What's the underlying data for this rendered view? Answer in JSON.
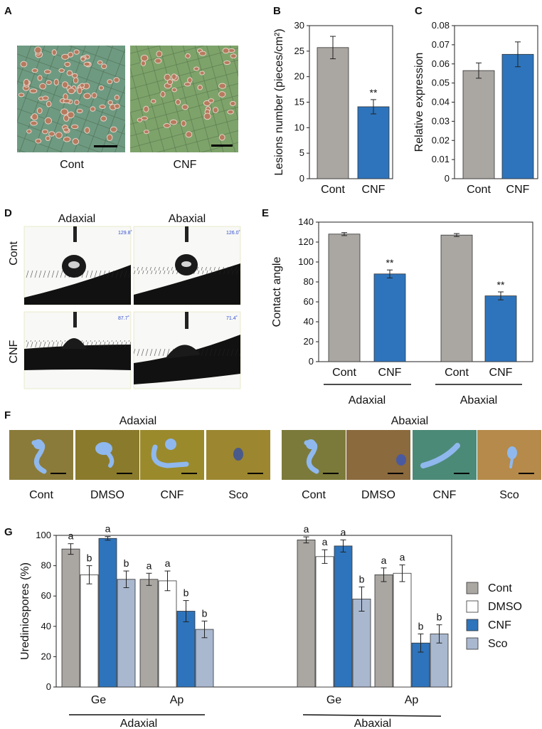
{
  "panels": {
    "A": {
      "label": "A",
      "captions": [
        "Cont",
        "CNF"
      ]
    },
    "B": {
      "label": "B"
    },
    "C": {
      "label": "C"
    },
    "D": {
      "label": "D",
      "columns": [
        "Adaxial",
        "Abaxial"
      ],
      "rows": [
        "Cont",
        "CNF"
      ],
      "angles": [
        "129.8˚",
        "126.0˚",
        "87.7˚",
        "71.4˚"
      ]
    },
    "E": {
      "label": "E"
    },
    "F": {
      "label": "F",
      "groups": [
        "Adaxial",
        "Abaxial"
      ],
      "captions": [
        "Cont",
        "DMSO",
        "CNF",
        "Sco"
      ]
    },
    "G": {
      "label": "G"
    }
  },
  "colors": {
    "gray": "#aaa7a3",
    "blue": "#2e74bc",
    "white": "#ffffff",
    "lightblue": "#a9b8cf"
  },
  "chart_data": [
    {
      "id": "B",
      "type": "bar",
      "categories": [
        "Cont",
        "CNF"
      ],
      "values": [
        25.7,
        14.1
      ],
      "errors": [
        2.2,
        1.4
      ],
      "annotations": [
        "",
        "**"
      ],
      "ylabel": "Lesions number (pieces/cm²)",
      "ylim": [
        0,
        30
      ],
      "yticks": [
        0,
        5,
        10,
        15,
        20,
        25,
        30
      ],
      "colors": [
        "#aaa7a3",
        "#2e74bc"
      ]
    },
    {
      "id": "C",
      "type": "bar",
      "categories": [
        "Cont",
        "CNF"
      ],
      "values": [
        0.0565,
        0.065
      ],
      "errors": [
        0.004,
        0.0065
      ],
      "ylabel": "Relative expression",
      "ylim": [
        0,
        0.08
      ],
      "yticks": [
        "0",
        "0.01",
        "0.02",
        "0.03",
        "0.04",
        "0.05",
        "0.06",
        "0.07",
        "0.08"
      ],
      "colors": [
        "#aaa7a3",
        "#2e74bc"
      ]
    },
    {
      "id": "E",
      "type": "bar",
      "categories": [
        "Cont",
        "CNF",
        "Cont",
        "CNF"
      ],
      "groups": [
        "Adaxial",
        "Abaxial"
      ],
      "values": [
        128,
        88,
        127,
        66
      ],
      "errors": [
        1.5,
        4,
        1.5,
        4
      ],
      "annotations": [
        "",
        "**",
        "",
        "**"
      ],
      "ylabel": "Contact angle",
      "ylim": [
        0,
        140
      ],
      "yticks": [
        0,
        20,
        40,
        60,
        80,
        100,
        120,
        140
      ],
      "colors": [
        "#aaa7a3",
        "#2e74bc",
        "#aaa7a3",
        "#2e74bc"
      ]
    },
    {
      "id": "G",
      "type": "bar",
      "groups": [
        "Adaxial",
        "Abaxial"
      ],
      "categories": [
        "Ge",
        "Ap",
        "Ge",
        "Ap"
      ],
      "ylabel": "Urediniospores (%)",
      "ylim": [
        0,
        100
      ],
      "yticks": [
        0,
        20,
        40,
        60,
        80,
        100
      ],
      "legend": "right",
      "series": [
        {
          "name": "Cont",
          "color": "#aaa7a3",
          "values": [
            91,
            71,
            97,
            74
          ],
          "errors": [
            3.5,
            4,
            2,
            4.5
          ],
          "letters": [
            "a",
            "a",
            "a",
            "a"
          ]
        },
        {
          "name": "DMSO",
          "color": "#ffffff",
          "values": [
            74,
            70,
            86,
            75
          ],
          "errors": [
            6,
            6.5,
            4.5,
            5.5
          ],
          "letters": [
            "b",
            "a",
            "a",
            "a"
          ]
        },
        {
          "name": "CNF",
          "color": "#2e74bc",
          "values": [
            98,
            50,
            93,
            29
          ],
          "errors": [
            1.2,
            7,
            4,
            6
          ],
          "letters": [
            "a",
            "b",
            "a",
            "b"
          ]
        },
        {
          "name": "Sco",
          "color": "#a9b8cf",
          "values": [
            71,
            38,
            58,
            35
          ],
          "errors": [
            5.5,
            5.5,
            8,
            6
          ],
          "letters": [
            "b",
            "b",
            "b",
            "b"
          ]
        }
      ]
    }
  ]
}
